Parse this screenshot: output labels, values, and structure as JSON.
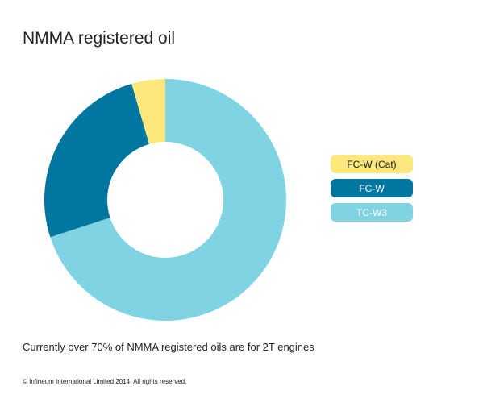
{
  "title": "NMMA registered oil",
  "caption": "Currently over 70% of NMMA registered oils are for 2T engines",
  "copyright": "© Infineum International Limited 2014. All rights reserved.",
  "chart_data": {
    "type": "pie",
    "title": "NMMA registered oil",
    "donut": true,
    "legend_position": "right",
    "categories": [
      "FC-W (Cat)",
      "FC-W",
      "TC-W3"
    ],
    "values": [
      4.5,
      25.5,
      70
    ],
    "colors": [
      "#fde87e",
      "#0076a0",
      "#7fd3e3"
    ],
    "legend_text_colors": [
      "#1a1a1a",
      "#ffffff",
      "#ffffff"
    ]
  }
}
